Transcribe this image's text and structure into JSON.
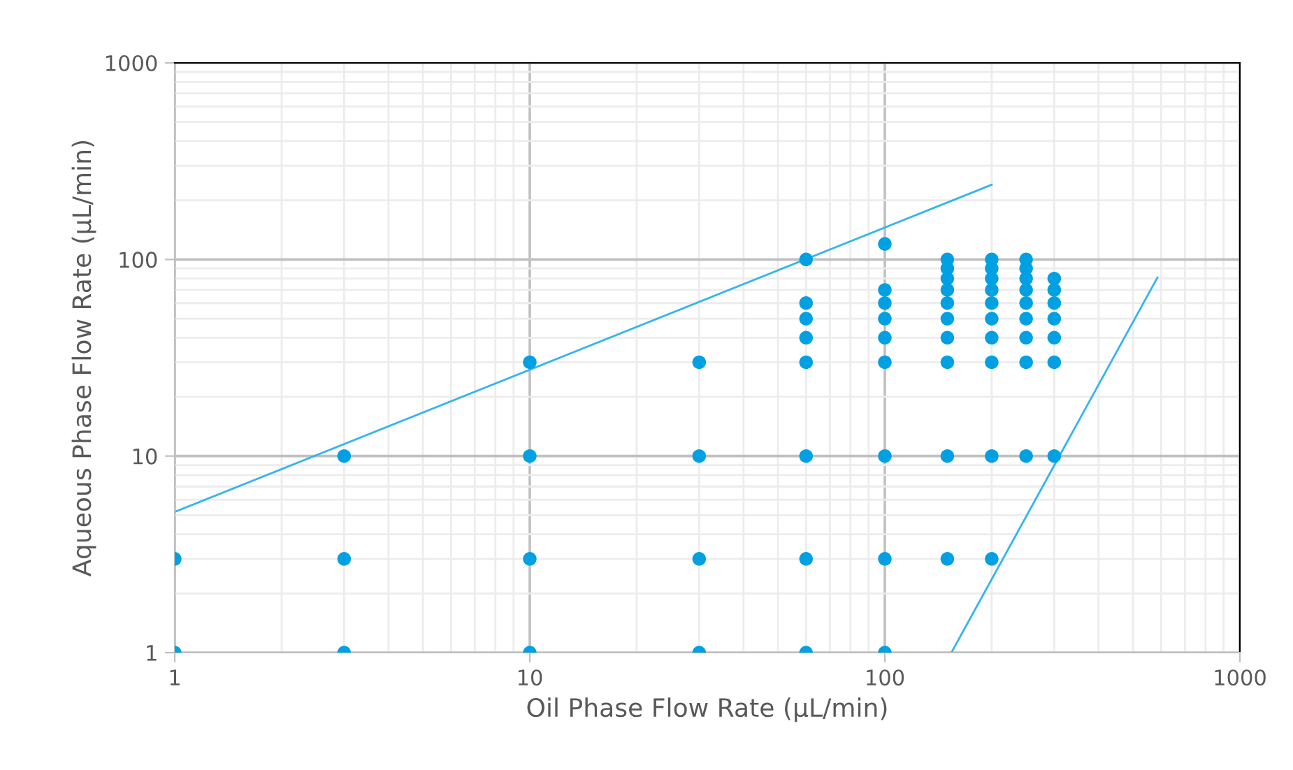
{
  "chart_data": {
    "type": "scatter",
    "xlabel": "Oil Phase Flow Rate (µL/min)",
    "ylabel": "Aqueous Phase Flow Rate (µL/min)",
    "log": "xy",
    "xlim": [
      1,
      1000
    ],
    "ylim": [
      1,
      1000
    ],
    "xticks": [
      1,
      10,
      100,
      1000
    ],
    "yticks": [
      1,
      10,
      100,
      1000
    ],
    "grid": true,
    "marker": "circle",
    "series": [
      {
        "color": "#00a0e3",
        "x": [
          1,
          1,
          3,
          3,
          3,
          10,
          10,
          10,
          10,
          30,
          30,
          30,
          30,
          60,
          60,
          60,
          60,
          60,
          60,
          60,
          60,
          100,
          100,
          100,
          100,
          100,
          100,
          100,
          100,
          100,
          150,
          150,
          150,
          150,
          150,
          150,
          150,
          150,
          150,
          150,
          200,
          200,
          200,
          200,
          200,
          200,
          200,
          200,
          200,
          200,
          250,
          250,
          250,
          250,
          250,
          250,
          250,
          250,
          250,
          300,
          300,
          300,
          300,
          300,
          300,
          300
        ],
        "values": [
          1,
          3,
          1,
          3,
          10,
          1,
          3,
          10,
          30,
          1,
          3,
          10,
          30,
          1,
          3,
          10,
          30,
          40,
          50,
          60,
          100,
          1,
          3,
          10,
          30,
          40,
          50,
          60,
          70,
          120,
          3,
          10,
          30,
          40,
          50,
          60,
          70,
          80,
          90,
          100,
          3,
          10,
          30,
          40,
          50,
          60,
          70,
          80,
          90,
          100,
          10,
          30,
          40,
          50,
          60,
          70,
          80,
          90,
          100,
          10,
          30,
          40,
          50,
          60,
          70,
          80
        ]
      },
      {
        "type": "line",
        "color": "#33b5ea",
        "marker": "none",
        "x": [
          1,
          200
        ],
        "values": [
          5.2,
          240
        ]
      },
      {
        "type": "line",
        "color": "#33b5ea",
        "marker": "none",
        "x": [
          154,
          586
        ],
        "values": [
          1,
          81
        ]
      }
    ]
  }
}
